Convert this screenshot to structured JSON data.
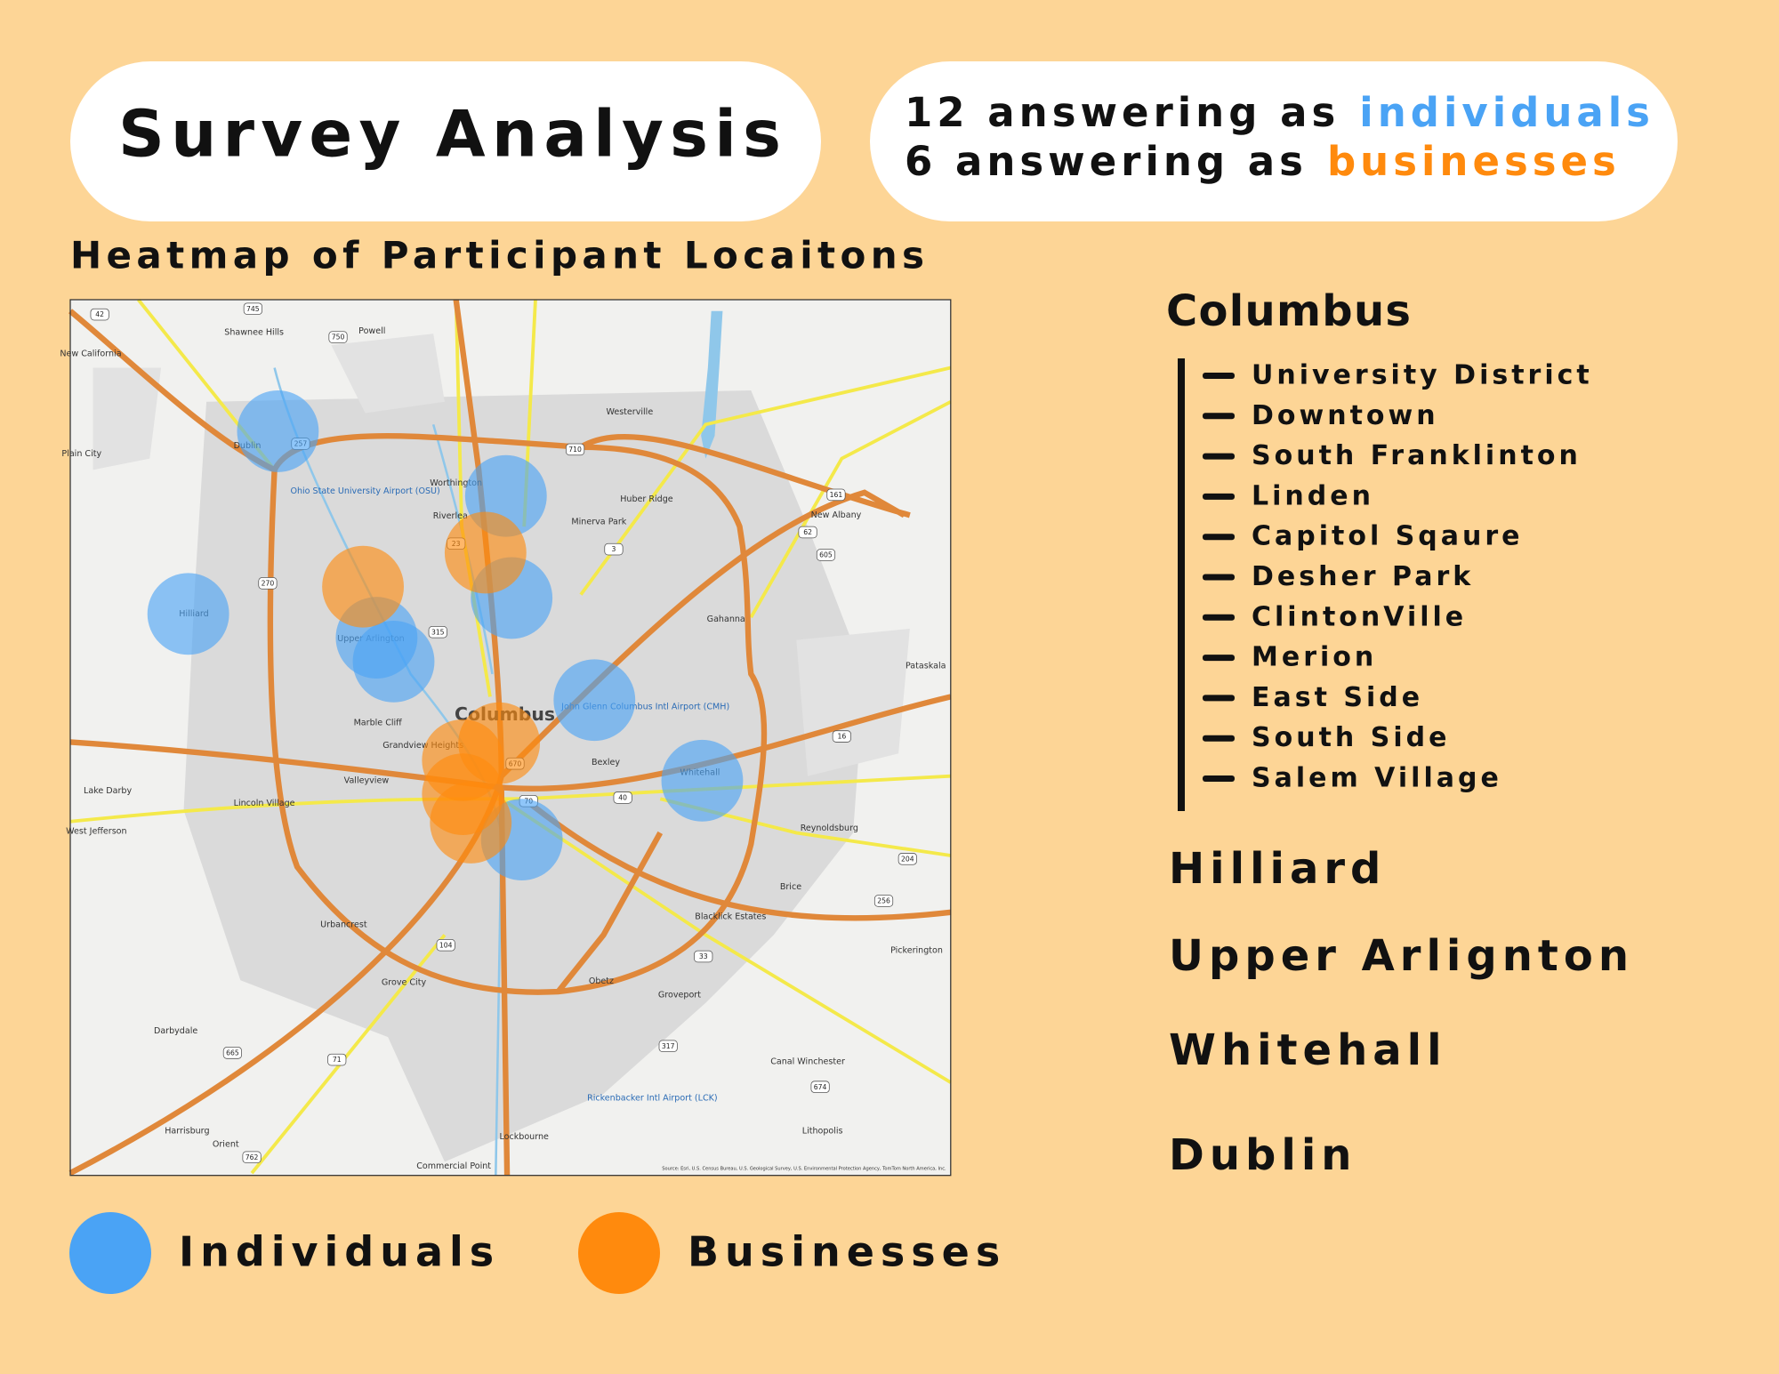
{
  "header": {
    "title": "Survey Analysis",
    "summary": [
      {
        "count": "12 answering as",
        "group": "individuals"
      },
      {
        "count": "6 answering as",
        "group": "businesses"
      }
    ]
  },
  "map": {
    "title": "Heatmap of Participant Locaitons",
    "labels": [
      "Powell",
      "Shawnee Hills",
      "New California",
      "Plain City",
      "Dublin",
      "Westerville",
      "Worthington",
      "Ohio State University Airport (OSU)",
      "Riverlea",
      "Huber Ridge",
      "Minerva Park",
      "New Albany",
      "Hilliard",
      "Gahanna",
      "Upper Arlington",
      "Pataskala",
      "Columbus",
      "John Glenn Columbus Intl Airport (CMH)",
      "Marble Cliff",
      "Grandview Heights",
      "Bexley",
      "Whitehall",
      "Valleyview",
      "Lake Darby",
      "Lincoln Village",
      "West Jefferson",
      "Reynoldsburg",
      "Brice",
      "Blacklick Estates",
      "Urbancrest",
      "Pickerington",
      "Grove City",
      "Obetz",
      "Groveport",
      "Darbydale",
      "Canal Winchester",
      "Rickenbacker Intl Airport (LCK)",
      "Harrisburg",
      "Lithopolis",
      "Orient",
      "Lockbourne",
      "Commercial Point"
    ],
    "shields": [
      "42",
      "745",
      "750",
      "257",
      "710",
      "161",
      "62",
      "605",
      "3",
      "23",
      "270",
      "315",
      "16",
      "670",
      "70",
      "40",
      "204",
      "256",
      "104",
      "33",
      "317",
      "71",
      "665",
      "674",
      "762"
    ],
    "source": "Source: Esri, U.S. Census Bureau, U.S. Geological Survey, U.S. Environmental Protection Agency, TomTom North America, Inc."
  },
  "legend": [
    {
      "label": "Individuals",
      "color": "#4aa3f5"
    },
    {
      "label": "Businesses",
      "color": "#ff8a0d"
    }
  ],
  "locations": {
    "primary": "Columbus",
    "neighborhoods": [
      "University District",
      "Downtown",
      "South Franklinton",
      "Linden",
      "Capitol Sqaure",
      "Desher Park",
      "ClintonVille",
      "Merion",
      "East Side",
      "South Side",
      "Salem Village"
    ],
    "others": [
      "Hilliard",
      "Upper Arlignton",
      "Whitehall",
      "Dublin"
    ]
  }
}
